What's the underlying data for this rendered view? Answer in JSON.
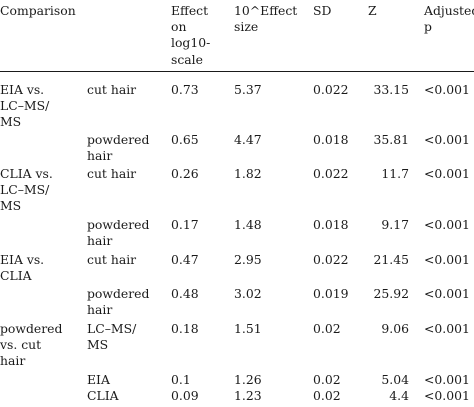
{
  "table": {
    "headers": {
      "comparison": "Comparison",
      "effect_log": "Effect\non\nlog10-\nscale",
      "effect_size": "10^Effect\nsize",
      "sd": "SD",
      "z": "Z",
      "adjusted_p": "Adjusted\np"
    },
    "rows": [
      {
        "comparison": "EIA vs.\nLC–MS/\nMS",
        "sub": "cut hair",
        "effect_log": "0.73",
        "effect_size": "5.37",
        "sd": "0.022",
        "z": "33.15",
        "p": "<0.001"
      },
      {
        "comparison": "",
        "sub": "powdered\nhair",
        "effect_log": "0.65",
        "effect_size": "4.47",
        "sd": "0.018",
        "z": "35.81",
        "p": "<0.001"
      },
      {
        "comparison": "CLIA vs.\nLC–MS/\nMS",
        "sub": "cut hair",
        "effect_log": "0.26",
        "effect_size": "1.82",
        "sd": "0.022",
        "z": "11.7",
        "p": "<0.001"
      },
      {
        "comparison": "",
        "sub": "powdered\nhair",
        "effect_log": "0.17",
        "effect_size": "1.48",
        "sd": "0.018",
        "z": "9.17",
        "p": "<0.001"
      },
      {
        "comparison": "EIA vs.\nCLIA",
        "sub": "cut hair",
        "effect_log": "0.47",
        "effect_size": "2.95",
        "sd": "0.022",
        "z": "21.45",
        "p": "<0.001"
      },
      {
        "comparison": "",
        "sub": "powdered\nhair",
        "effect_log": "0.48",
        "effect_size": "3.02",
        "sd": "0.019",
        "z": "25.92",
        "p": "<0.001"
      },
      {
        "comparison": "powdered\nvs. cut\nhair",
        "sub": "LC–MS/\nMS",
        "effect_log": "0.18",
        "effect_size": "1.51",
        "sd": "0.02",
        "z": "9.06",
        "p": "<0.001"
      },
      {
        "comparison": "",
        "sub": "EIA",
        "effect_log": "0.1",
        "effect_size": "1.26",
        "sd": "0.02",
        "z": "5.04",
        "p": "<0.001"
      },
      {
        "comparison": "",
        "sub": "CLIA",
        "effect_log": "0.09",
        "effect_size": "1.23",
        "sd": "0.02",
        "z": "4.4",
        "p": "<0.001"
      }
    ]
  }
}
